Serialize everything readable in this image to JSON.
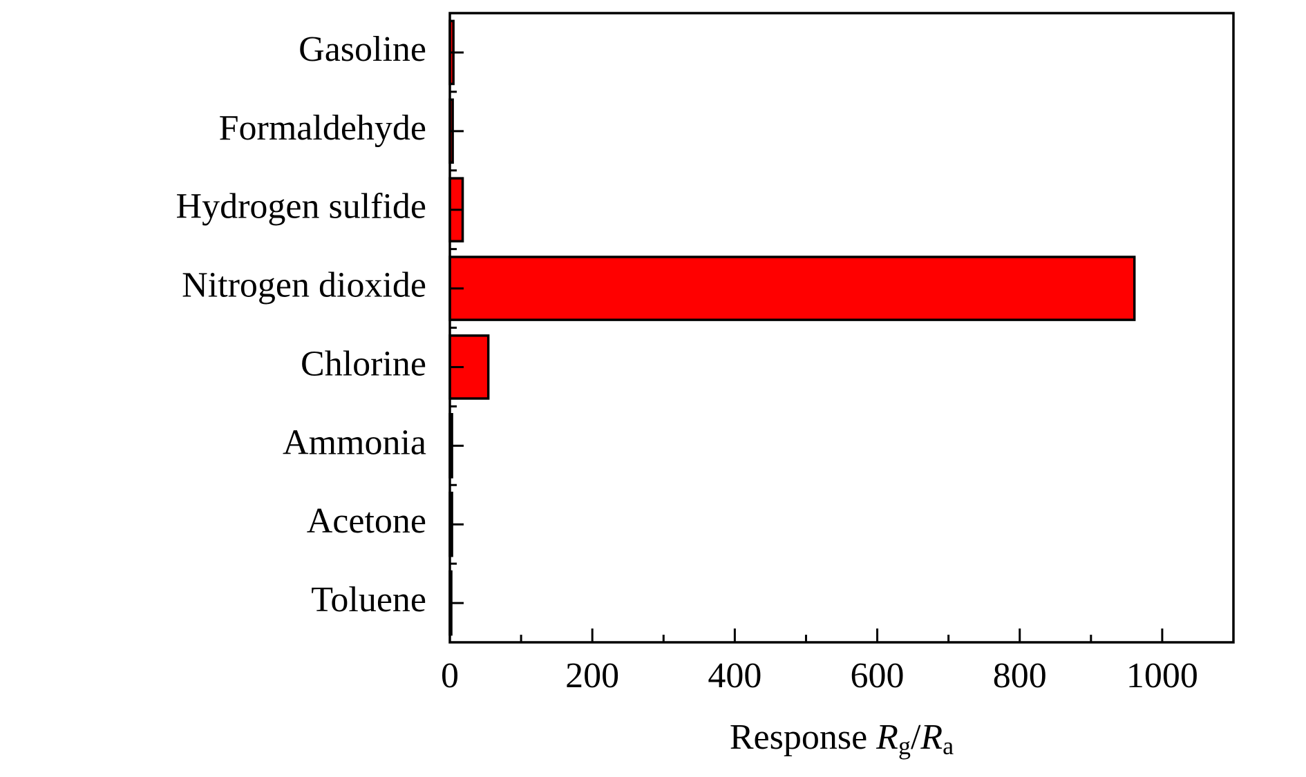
{
  "chart_data": {
    "type": "hbar",
    "categories": [
      "Gasoline",
      "Formaldehyde",
      "Hydrogen sulfide",
      "Nitrogen dioxide",
      "Chlorine",
      "Ammonia",
      "Acetone",
      "Toluene"
    ],
    "values": [
      5,
      4,
      18,
      961,
      54,
      3,
      3,
      2
    ],
    "color": "#ff0000",
    "x_label": [
      "Response ",
      "R",
      "g",
      "/",
      "R",
      "a"
    ],
    "xlim": [
      0,
      1100
    ],
    "xticks": [
      0,
      200,
      400,
      600,
      800,
      1000
    ],
    "xticks_minor": [
      100,
      300,
      500,
      700,
      900
    ],
    "grid": false
  }
}
